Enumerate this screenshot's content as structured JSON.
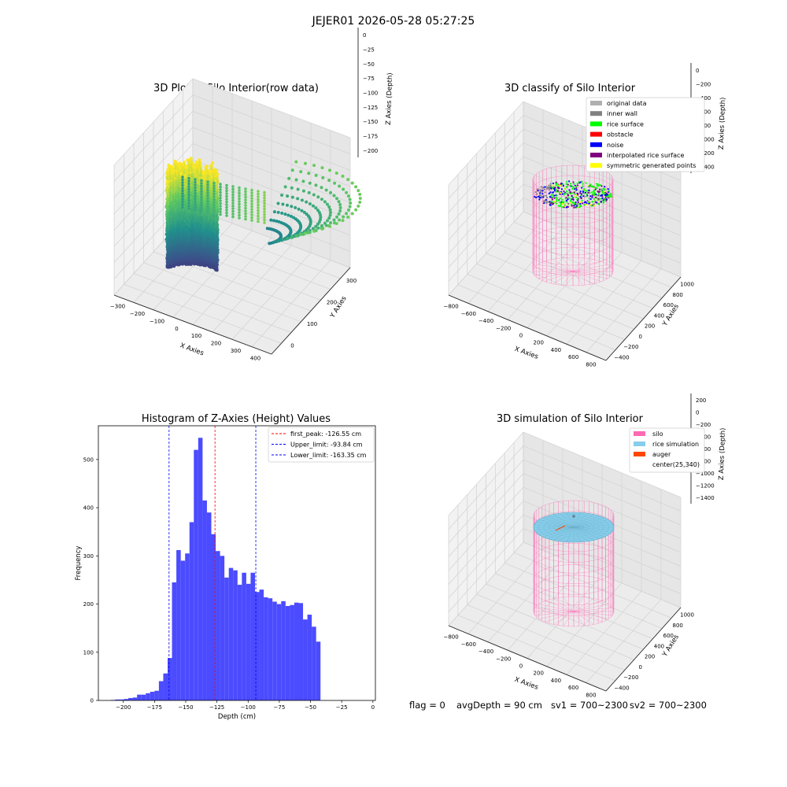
{
  "suptitle": "JEJER01 2026-05-28 05:27:25",
  "footer": {
    "flag": "flag = 0",
    "avg_depth": "avgDepth = 90 cm",
    "sv1": "sv1 = 700~2300",
    "sv2": "sv2 = 700~2300"
  },
  "colors": {
    "surface_colormap": "viridis",
    "silo": "#ff69b4",
    "rice_simulation": "#87ceeb",
    "auger": "#ff4500",
    "original_data": "#b0b0b0",
    "inner_wall": "#808080",
    "rice_surface": "#00ff00",
    "obstacle": "#ff0000",
    "noise": "#0000ff",
    "interpolated_rice_surface": "#800080",
    "symmetric_generated_points": "#ffff00",
    "histogram_bars": "#4b4bff"
  },
  "chart_data": [
    {
      "type": "scatter3d",
      "title": "3D Plot of Silo Interior(row data)",
      "xlabel": "X Axies",
      "ylabel": "Y Axies",
      "zlabel": "Z Axies (Depth)",
      "x_ticks": [
        "−300",
        "−200",
        "−100",
        "0",
        "100",
        "200",
        "300",
        "400"
      ],
      "y_ticks": [
        "0",
        "100",
        "200",
        "300"
      ],
      "z_ticks": [
        "0",
        "−25",
        "−50",
        "−75",
        "−100",
        "−125",
        "−150",
        "−175",
        "−200"
      ],
      "xlim": [
        -350,
        420
      ],
      "ylim": [
        -60,
        360
      ],
      "zlim": [
        -220,
        0
      ],
      "colormap": "viridis"
    },
    {
      "type": "scatter3d",
      "title": "3D classify of Silo Interior",
      "xlabel": "X Axies",
      "ylabel": "Y Axies",
      "zlabel": "Z Axies (Depth)",
      "x_ticks": [
        "−800",
        "−600",
        "−400",
        "−200",
        "0",
        "200",
        "400",
        "600",
        "800"
      ],
      "y_ticks": [
        "−400",
        "−200",
        "0",
        "200",
        "400",
        "600",
        "800",
        "1000"
      ],
      "z_ticks": [
        "0",
        "−200",
        "−400",
        "−600",
        "−800",
        "−1000",
        "−1200",
        "−1400"
      ],
      "legend": [
        "original data",
        "inner wall",
        "rice surface",
        "obstacle",
        "noise",
        "interpolated rice surface",
        "symmetric generated points"
      ],
      "legend_position": "top-right"
    },
    {
      "type": "bar",
      "title": "Histogram of Z-Axies (Height) Values",
      "xlabel": "Depth (cm)",
      "ylabel": "Frequency",
      "xlim": [
        -220,
        2
      ],
      "ylim": [
        0,
        570
      ],
      "x_ticks": [
        "−200",
        "−175",
        "−150",
        "−125",
        "−100",
        "−75",
        "−50",
        "−25",
        "0"
      ],
      "y_ticks": [
        "0",
        "100",
        "200",
        "300",
        "400",
        "500"
      ],
      "bin_start": -210,
      "bin_width": 3.5,
      "values": [
        1,
        2,
        2,
        3,
        5,
        6,
        12,
        12,
        15,
        18,
        20,
        40,
        56,
        88,
        245,
        312,
        290,
        305,
        370,
        520,
        545,
        415,
        390,
        345,
        310,
        300,
        255,
        275,
        270,
        240,
        265,
        242,
        265,
        225,
        230,
        214,
        212,
        205,
        200,
        206,
        196,
        198,
        203,
        202,
        168,
        178,
        153,
        122
      ],
      "vlines": [
        {
          "label": "first_peak: -126.55 cm",
          "x": -126.55,
          "color": "#ff0000"
        },
        {
          "label": "Upper_limit: -93.84 cm",
          "x": -93.84,
          "color": "#0000ff"
        },
        {
          "label": "Lower_limit: -163.35 cm",
          "x": -163.35,
          "color": "#0000ff"
        }
      ],
      "legend_position": "top-right"
    },
    {
      "type": "surface3d",
      "title": "3D simulation of Silo Interior",
      "xlabel": "X Axies",
      "ylabel": "Y Axies",
      "zlabel": "Z Axies (Depth)",
      "x_ticks": [
        "−800",
        "−600",
        "−400",
        "−200",
        "0",
        "200",
        "400",
        "600",
        "800"
      ],
      "y_ticks": [
        "−400",
        "−200",
        "0",
        "200",
        "400",
        "600",
        "800",
        "1000"
      ],
      "z_ticks": [
        "200",
        "0",
        "−200",
        "−400",
        "−600",
        "−800",
        "−1000",
        "−1200",
        "−1400"
      ],
      "legend": [
        "silo",
        "rice simulation",
        "auger",
        "center(25,340)"
      ],
      "legend_position": "top-right"
    }
  ]
}
